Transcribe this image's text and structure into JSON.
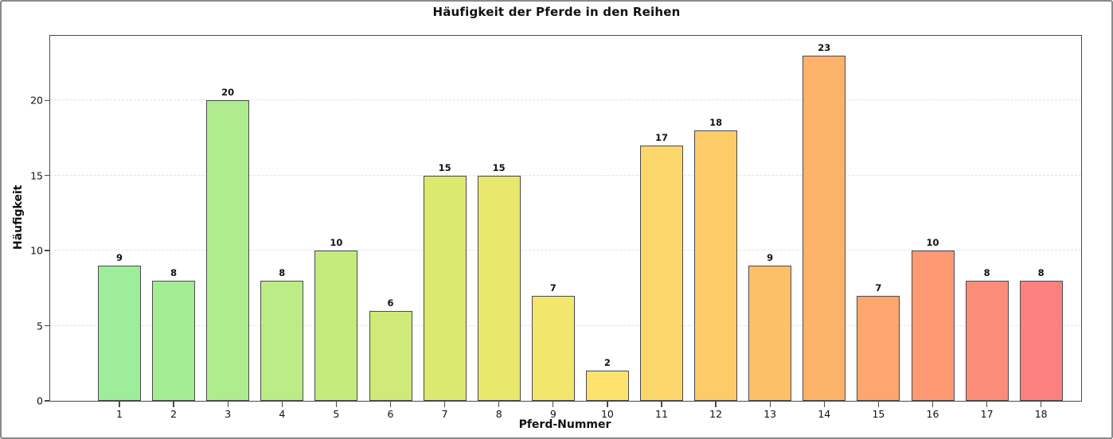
{
  "window": {
    "background": "#ffffff",
    "border_color": "#8a8a8a",
    "plot_frame_color": "#4a4a4a"
  },
  "chart_data": {
    "type": "bar",
    "title": "Häufigkeit der Pferde in den Reihen",
    "xlabel": "Pferd-Nummer",
    "ylabel": "Häufigkeit",
    "categories": [
      "1",
      "2",
      "3",
      "4",
      "5",
      "6",
      "7",
      "8",
      "9",
      "10",
      "11",
      "12",
      "13",
      "14",
      "15",
      "16",
      "17",
      "18"
    ],
    "values": [
      9,
      8,
      20,
      8,
      10,
      6,
      15,
      15,
      7,
      2,
      17,
      18,
      9,
      23,
      7,
      10,
      8,
      8
    ],
    "bar_colors": [
      "#9DED9B",
      "#A3ED94",
      "#AFEC8D",
      "#BBEC86",
      "#C5EB7F",
      "#CFEA78",
      "#DBEA6F",
      "#E7E86C",
      "#F3E66D",
      "#FDE36E",
      "#FDD76B",
      "#FDCB67",
      "#FDBF68",
      "#FDB26A",
      "#FDA66E",
      "#FD9973",
      "#FC8C7A",
      "#FB8181"
    ],
    "bar_edge_color": "#4a4a4a",
    "yticks": [
      0,
      5,
      10,
      15,
      20
    ],
    "ylim": [
      0,
      24.3
    ],
    "grid": "horizontal-dashed",
    "grid_color": "#e2e2e2",
    "legend": "none",
    "value_labels_shown": true
  }
}
